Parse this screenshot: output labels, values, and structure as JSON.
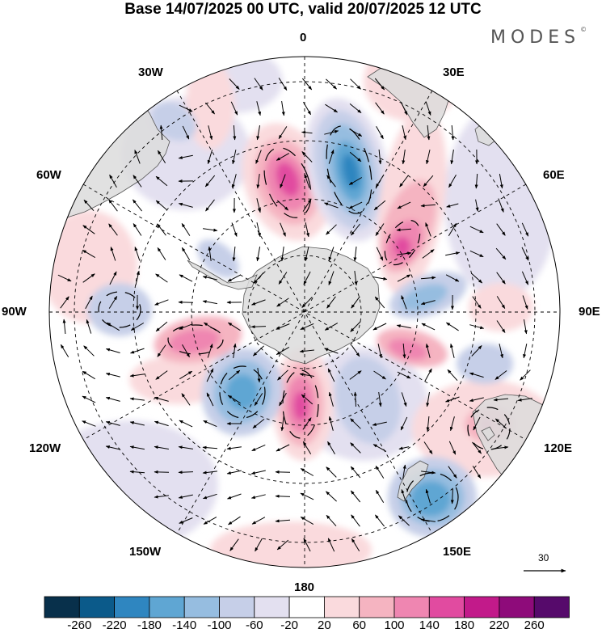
{
  "header": {
    "title": "Base 14/07/2025 00 UTC, valid 20/07/2025 12 UTC",
    "brand": "MODES",
    "brand_mark": "©"
  },
  "map": {
    "projection": "south-polar-stereographic",
    "longitude_labels": {
      "north": "0",
      "e30": "30E",
      "e60": "60E",
      "e90": "90E",
      "e120": "120E",
      "e150": "150E",
      "south": "180",
      "w150": "150W",
      "w120": "120W",
      "w90": "90W",
      "w60": "60W",
      "w30": "30W"
    },
    "reference_vector": "30",
    "land_color": "#dcdcdc"
  },
  "colorbar": {
    "colors": [
      "#08304b",
      "#0b5a8a",
      "#2f86c0",
      "#5fa6d3",
      "#96bde0",
      "#c6cfe8",
      "#e3e0f0",
      "#ffffff",
      "#fadadd",
      "#f5b4c1",
      "#ef86b1",
      "#e14ba0",
      "#c21a8a",
      "#8e0b7a",
      "#560a6b"
    ],
    "labels": [
      "-260",
      "-220",
      "-180",
      "-140",
      "-100",
      "-60",
      "-20",
      "20",
      "60",
      "100",
      "140",
      "180",
      "220",
      "260"
    ]
  }
}
